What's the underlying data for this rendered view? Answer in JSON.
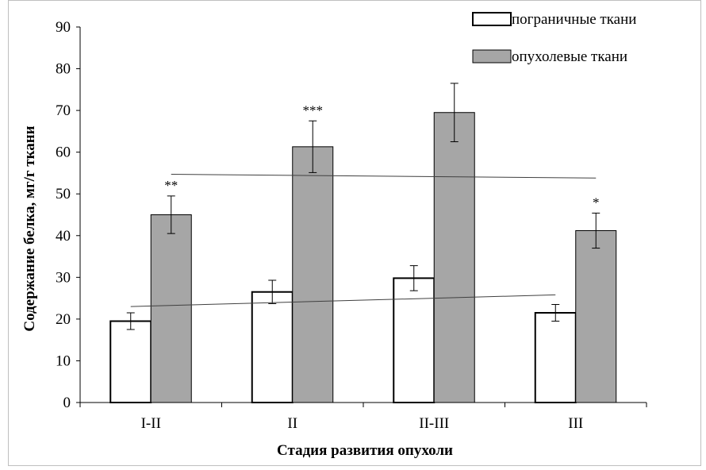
{
  "chart_data": {
    "type": "bar",
    "xlabel": "Стадия  развития опухоли",
    "ylabel": "Содержание белка, мг/г ткани",
    "ylim": [
      0,
      90
    ],
    "yticks": [
      0,
      10,
      20,
      30,
      40,
      50,
      60,
      70,
      80,
      90
    ],
    "grid": false,
    "legend_position": "top-right",
    "categories": [
      "I-II",
      "II",
      "II-III",
      "III"
    ],
    "series": [
      {
        "name": "пограничные ткани",
        "color": "#ffffff",
        "values": [
          19.5,
          26.5,
          29.8,
          21.5
        ],
        "errors": [
          2.0,
          2.8,
          3.0,
          2.0
        ],
        "trendline": [
          23.0,
          25.8
        ]
      },
      {
        "name": "опухолевые ткани",
        "color": "#a6a6a6",
        "values": [
          45.0,
          61.3,
          69.5,
          41.2
        ],
        "errors": [
          4.5,
          6.2,
          7.0,
          4.2
        ],
        "significance": [
          "**",
          "***",
          "",
          "*"
        ],
        "trendline": [
          54.7,
          53.8
        ]
      }
    ]
  }
}
